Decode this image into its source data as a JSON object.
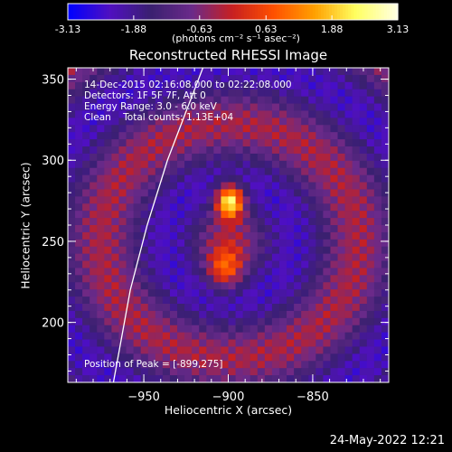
{
  "chart_data": {
    "type": "heatmap",
    "title": "Reconstructed RHESSI Image",
    "xlabel": "Heliocentric X (arcsec)",
    "ylabel": "Heliocentric Y (arcsec)",
    "xlim": [
      -995,
      -805
    ],
    "ylim": [
      163,
      357
    ],
    "x_ticks": [
      -950,
      -900,
      -850
    ],
    "y_ticks": [
      200,
      250,
      300,
      350
    ],
    "colorbar": {
      "range": [
        -3.13,
        3.13
      ],
      "ticks": [
        "-3.13",
        "-1.88",
        "-0.63",
        "0.63",
        "1.88",
        "3.13"
      ],
      "unit_label": "(photons cm⁻² s⁻¹ asec⁻²)"
    },
    "annotations": [
      "14-Dec-2015 02:16:08.000 to 02:22:08.000",
      "Detectors: 1F 5F 7F, Att 0",
      "Energy Range: 3.0 - 6.0 keV",
      "Clean    Total counts: 1.13E+04"
    ],
    "peak_label": "Position of Peak = [-899,275]",
    "peak": {
      "x": -899,
      "y": 275
    },
    "limb_curve": [
      [
        -968,
        163
      ],
      [
        -958,
        220
      ],
      [
        -948,
        260
      ],
      [
        -936,
        300
      ],
      [
        -925,
        330
      ],
      [
        -915,
        357
      ]
    ],
    "timestamp": "24-May-2022 12:21"
  },
  "colors": {
    "colormap": [
      "#0000ff",
      "#5010c0",
      "#3a2070",
      "#6a2a8a",
      "#c82020",
      "#ff5000",
      "#ffa000",
      "#ffff60",
      "#ffffe0"
    ],
    "axes": "#ffffff",
    "background": "#000000"
  }
}
